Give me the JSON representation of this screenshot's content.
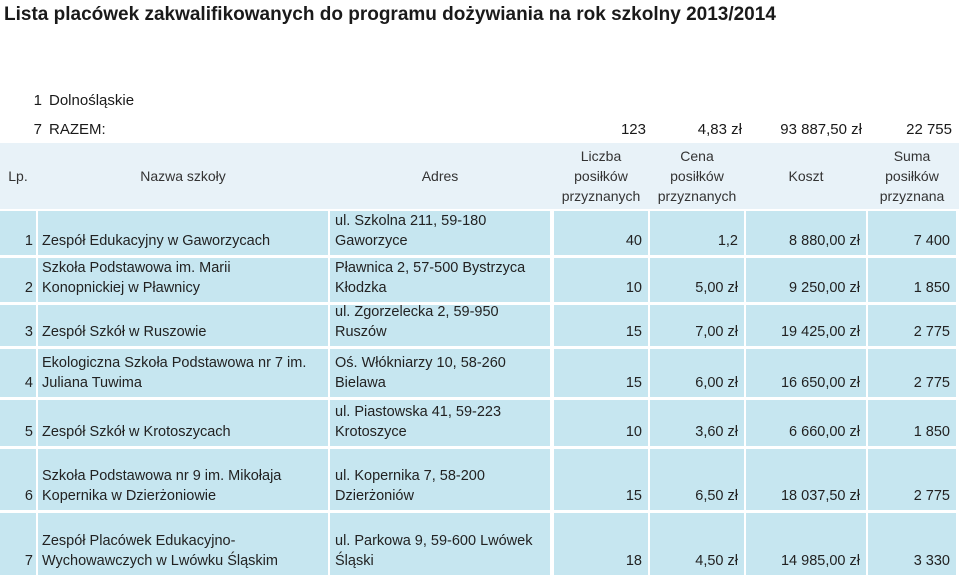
{
  "title": "Lista placówek zakwalifikowanych do programu dożywiania na rok szkolny 2013/2014",
  "region": {
    "num": "1",
    "name": "Dolnośląskie"
  },
  "total": {
    "count": "7",
    "label": "RAZEM:",
    "liczba": "123",
    "cena": "4,83 zł",
    "koszt": "93 887,50 zł",
    "suma": "22 755"
  },
  "header": {
    "lp": "Lp.",
    "nazwa": "Nazwa szkoły",
    "adres": "Adres",
    "liczba_1": "Liczba",
    "liczba_2": "posiłków",
    "liczba_3": "przyznanych",
    "cena_1": "Cena",
    "cena_2": "posiłków",
    "cena_3": "przyznanych",
    "koszt": "Koszt",
    "suma_1": "Suma",
    "suma_2": "posiłków",
    "suma_3": "przyznana"
  },
  "rows": [
    {
      "lp": "1",
      "name1": "",
      "name2": "Zespół Edukacyjny w Gaworzycach",
      "addr1": "ul. Szkolna 211, 59-180",
      "addr2": "Gaworzyce",
      "liczba": "40",
      "cena": "1,2",
      "koszt": "8 880,00 zł",
      "suma": "7 400"
    },
    {
      "lp": "2",
      "name1": "Szkoła Podstawowa im. Marii",
      "name2": "Konopnickiej w Pławnicy",
      "addr1": "Pławnica 2, 57-500 Bystrzyca",
      "addr2": "Kłodzka",
      "liczba": "10",
      "cena": "5,00 zł",
      "koszt": "9 250,00 zł",
      "suma": "1 850"
    },
    {
      "lp": "3",
      "name1": "",
      "name2": "Zespół Szkół w Ruszowie",
      "addr1": "ul. Zgorzelecka 2, 59-950",
      "addr2": "Ruszów",
      "liczba": "15",
      "cena": "7,00 zł",
      "koszt": "19 425,00 zł",
      "suma": "2 775"
    },
    {
      "lp": "4",
      "name1": "Ekologiczna Szkoła Podstawowa nr 7 im.",
      "name2": "Juliana Tuwima",
      "addr1": "Oś. Włókniarzy 10, 58-260",
      "addr2": "Bielawa",
      "liczba": "15",
      "cena": "6,00 zł",
      "koszt": "16 650,00 zł",
      "suma": "2 775"
    },
    {
      "lp": "5",
      "name1": "",
      "name2": "Zespół Szkół w Krotoszycach",
      "addr1": "ul. Piastowska 41, 59-223",
      "addr2": "Krotoszyce",
      "liczba": "10",
      "cena": "3,60 zł",
      "koszt": "6 660,00 zł",
      "suma": "1 850"
    },
    {
      "lp": "6",
      "name1": "Szkoła Podstawowa nr 9 im. Mikołaja",
      "name2": "Kopernika w Dzierżoniowie",
      "addr1": "ul. Kopernika 7, 58-200",
      "addr2": "Dzierżoniów",
      "liczba": "15",
      "cena": "6,50 zł",
      "koszt": "18 037,50 zł",
      "suma": "2 775"
    },
    {
      "lp": "7",
      "name1": "Zespół Placówek Edukacyjno-",
      "name2": "Wychowawczych w Lwówku Śląskim",
      "addr1": "ul. Parkowa 9, 59-600 Lwówek",
      "addr2": "Śląski",
      "liczba": "18",
      "cena": "4,50 zł",
      "koszt": "14 985,00 zł",
      "suma": "3 330"
    }
  ]
}
